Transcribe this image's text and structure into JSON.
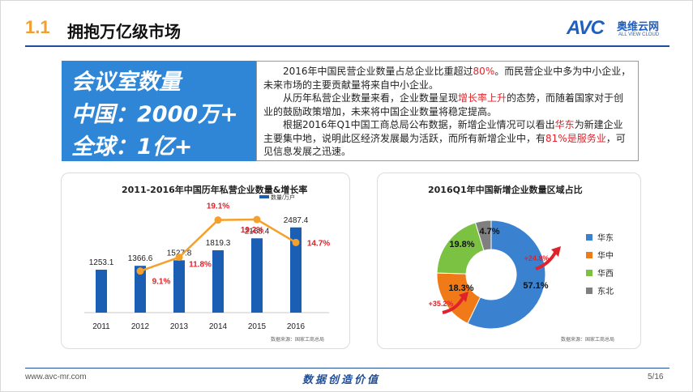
{
  "header": {
    "section_number": "1.1",
    "title": "拥抱万亿级市场"
  },
  "logo": {
    "brand": "AVC",
    "name_cn": "奥维云网",
    "name_en": "ALL VIEW CLOUD"
  },
  "highlight": {
    "line1": "会议室数量",
    "line2": "中国：2000万+",
    "line3": "全球：1亿+"
  },
  "text": {
    "p1_a": "2016年中国民营企业数量占总企业比重超过",
    "p1_red": "80%",
    "p1_b": "。而民营企业中多为中小企业，未来市场的主要贡献量将来自中小企业。",
    "p2_a": "从历年私营企业数量来看，企业数量呈现",
    "p2_red": "增长率上升",
    "p2_b": "的态势，而随着国家对于创业的鼓励政策增加，未来将中国企业数量将稳定提高。",
    "p3_a": "根据2016年Q1中国工商总局公布数据，新增企业情况可以看出",
    "p3_red1": "华东",
    "p3_b": "为新建企业主要集中地，说明此区经济发展最为活跃，而所有新增企业中，有",
    "p3_red2": "81%是服务业",
    "p3_c": "，可见信息发展之迅速。"
  },
  "chart_data": [
    {
      "type": "bar",
      "title": "2011-2016年中国历年私营企业数量&增长率",
      "categories": [
        "2011",
        "2012",
        "2013",
        "2014",
        "2015",
        "2016"
      ],
      "series": [
        {
          "name": "数量/万户",
          "values": [
            1253.1,
            1366.6,
            1527.8,
            1819.3,
            2168.4,
            2487.4
          ]
        },
        {
          "name": "增长率",
          "values": [
            null,
            9.1,
            11.8,
            19.1,
            19.2,
            14.7
          ]
        }
      ],
      "bar_labels": [
        "1253.1",
        "1366.6",
        "1527.8",
        "1819.3",
        "2168.4",
        "2487.4"
      ],
      "rate_labels": [
        "",
        "9.1%",
        "11.8%",
        "19.1%",
        "19.2%",
        "14.7%"
      ],
      "source": "数据来源：国家工商总局",
      "colors": {
        "bar": "#1a5fb4",
        "line": "#f5a02a",
        "rate_text": "#e0222a"
      }
    },
    {
      "type": "pie",
      "title": "2016Q1年中国新增企业数量区域占比",
      "labels": [
        "华东",
        "华中",
        "华西",
        "东北"
      ],
      "values": [
        57.1,
        18.3,
        19.8,
        4.7
      ],
      "value_labels": [
        "57.1%",
        "18.3%",
        "19.8%",
        "4.7%"
      ],
      "colors": [
        "#3a82d0",
        "#f07a18",
        "#7cc242",
        "#7f7f7f"
      ],
      "annotations": [
        "+24.8%",
        "+35.2%"
      ],
      "legend": "right",
      "source": "数据来源：国家工商总局"
    }
  ],
  "footer": {
    "url": "www.avc-mr.com",
    "slogan": "数据创造价值",
    "page": "5/16"
  }
}
